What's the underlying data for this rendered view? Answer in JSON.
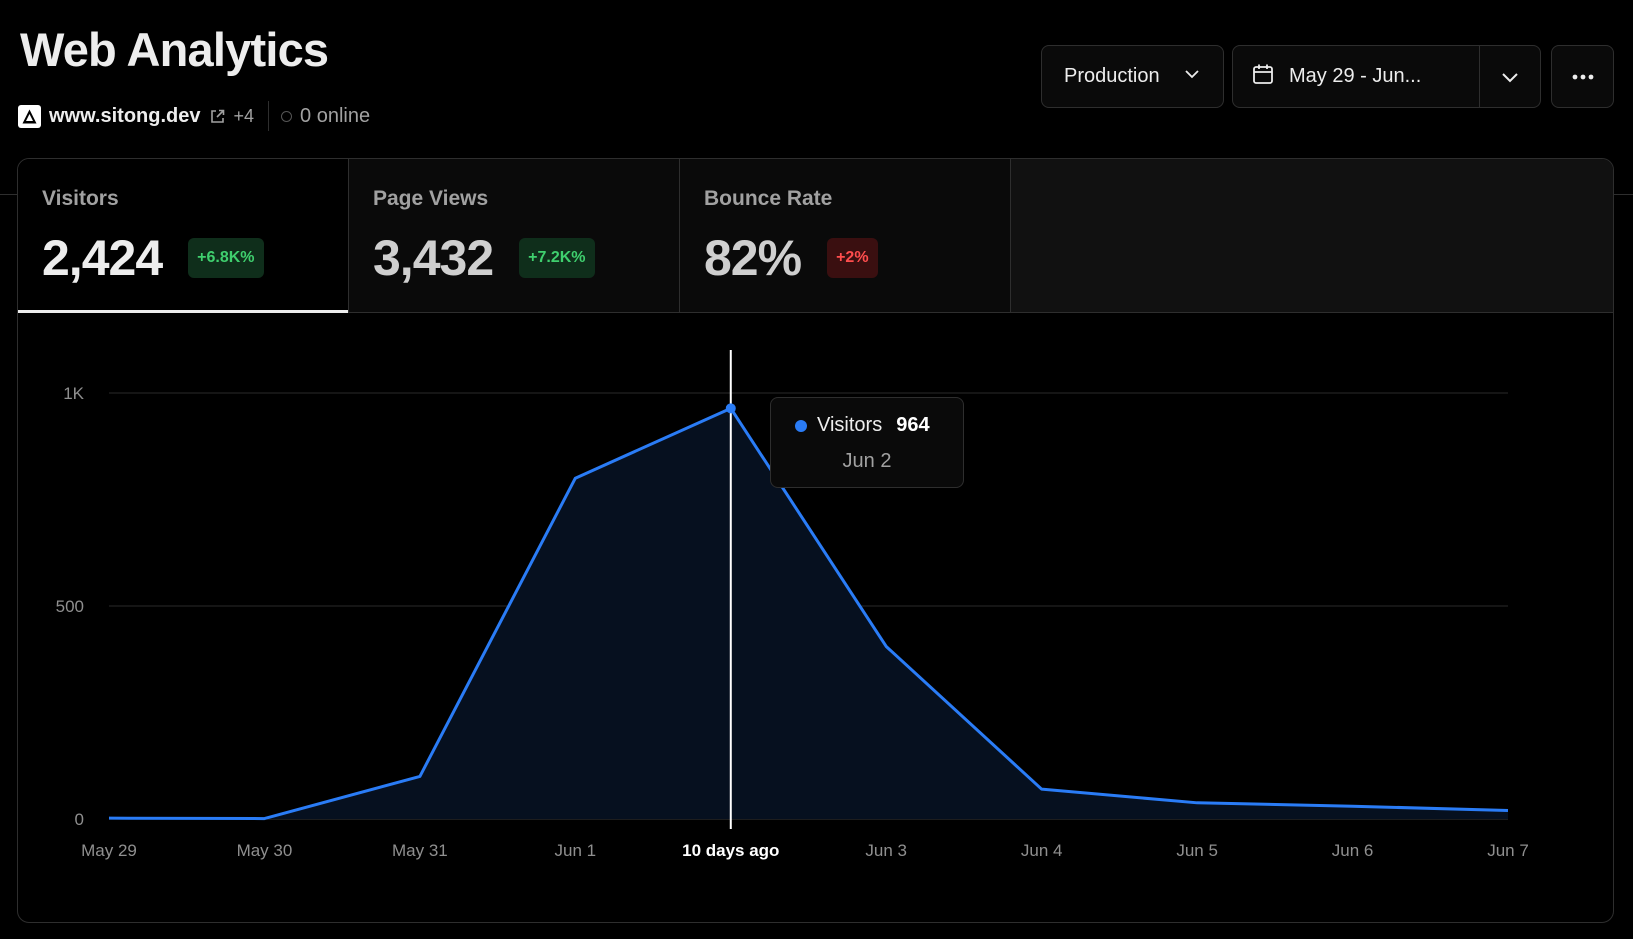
{
  "header": {
    "title": "Web Analytics",
    "domain": "www.sitong.dev",
    "extra_domains": "+4",
    "online": "0 online"
  },
  "controls": {
    "environment": "Production",
    "date_range": "May 29 - Jun...",
    "more_label": "More options"
  },
  "tabs": [
    {
      "label": "Visitors",
      "value": "2,424",
      "change": "+6.8K%",
      "trend": "up"
    },
    {
      "label": "Page Views",
      "value": "3,432",
      "change": "+7.2K%",
      "trend": "up"
    },
    {
      "label": "Bounce Rate",
      "value": "82%",
      "change": "+2%",
      "trend": "down"
    }
  ],
  "tooltip": {
    "series": "Visitors",
    "value": "964",
    "date": "Jun 2"
  },
  "colors": {
    "accent": "#2a7cf6",
    "area": "#06101f",
    "up": "#3fcf6e",
    "down": "#ff4d4d"
  },
  "chart_data": {
    "type": "area",
    "title": "",
    "xlabel": "",
    "ylabel": "",
    "categories": [
      "May 29",
      "May 30",
      "May 31",
      "Jun 1",
      "10 days ago",
      "Jun 3",
      "Jun 4",
      "Jun 5",
      "Jun 6",
      "Jun 7"
    ],
    "highlight_index": 4,
    "series": [
      {
        "name": "Visitors",
        "values": [
          2,
          1,
          100,
          800,
          964,
          405,
          70,
          38,
          30,
          20
        ]
      }
    ],
    "y_ticks": [
      0,
      500,
      1000
    ],
    "y_tick_labels": [
      "0",
      "500",
      "1K"
    ],
    "ylim": [
      0,
      1000
    ],
    "grid": true
  }
}
